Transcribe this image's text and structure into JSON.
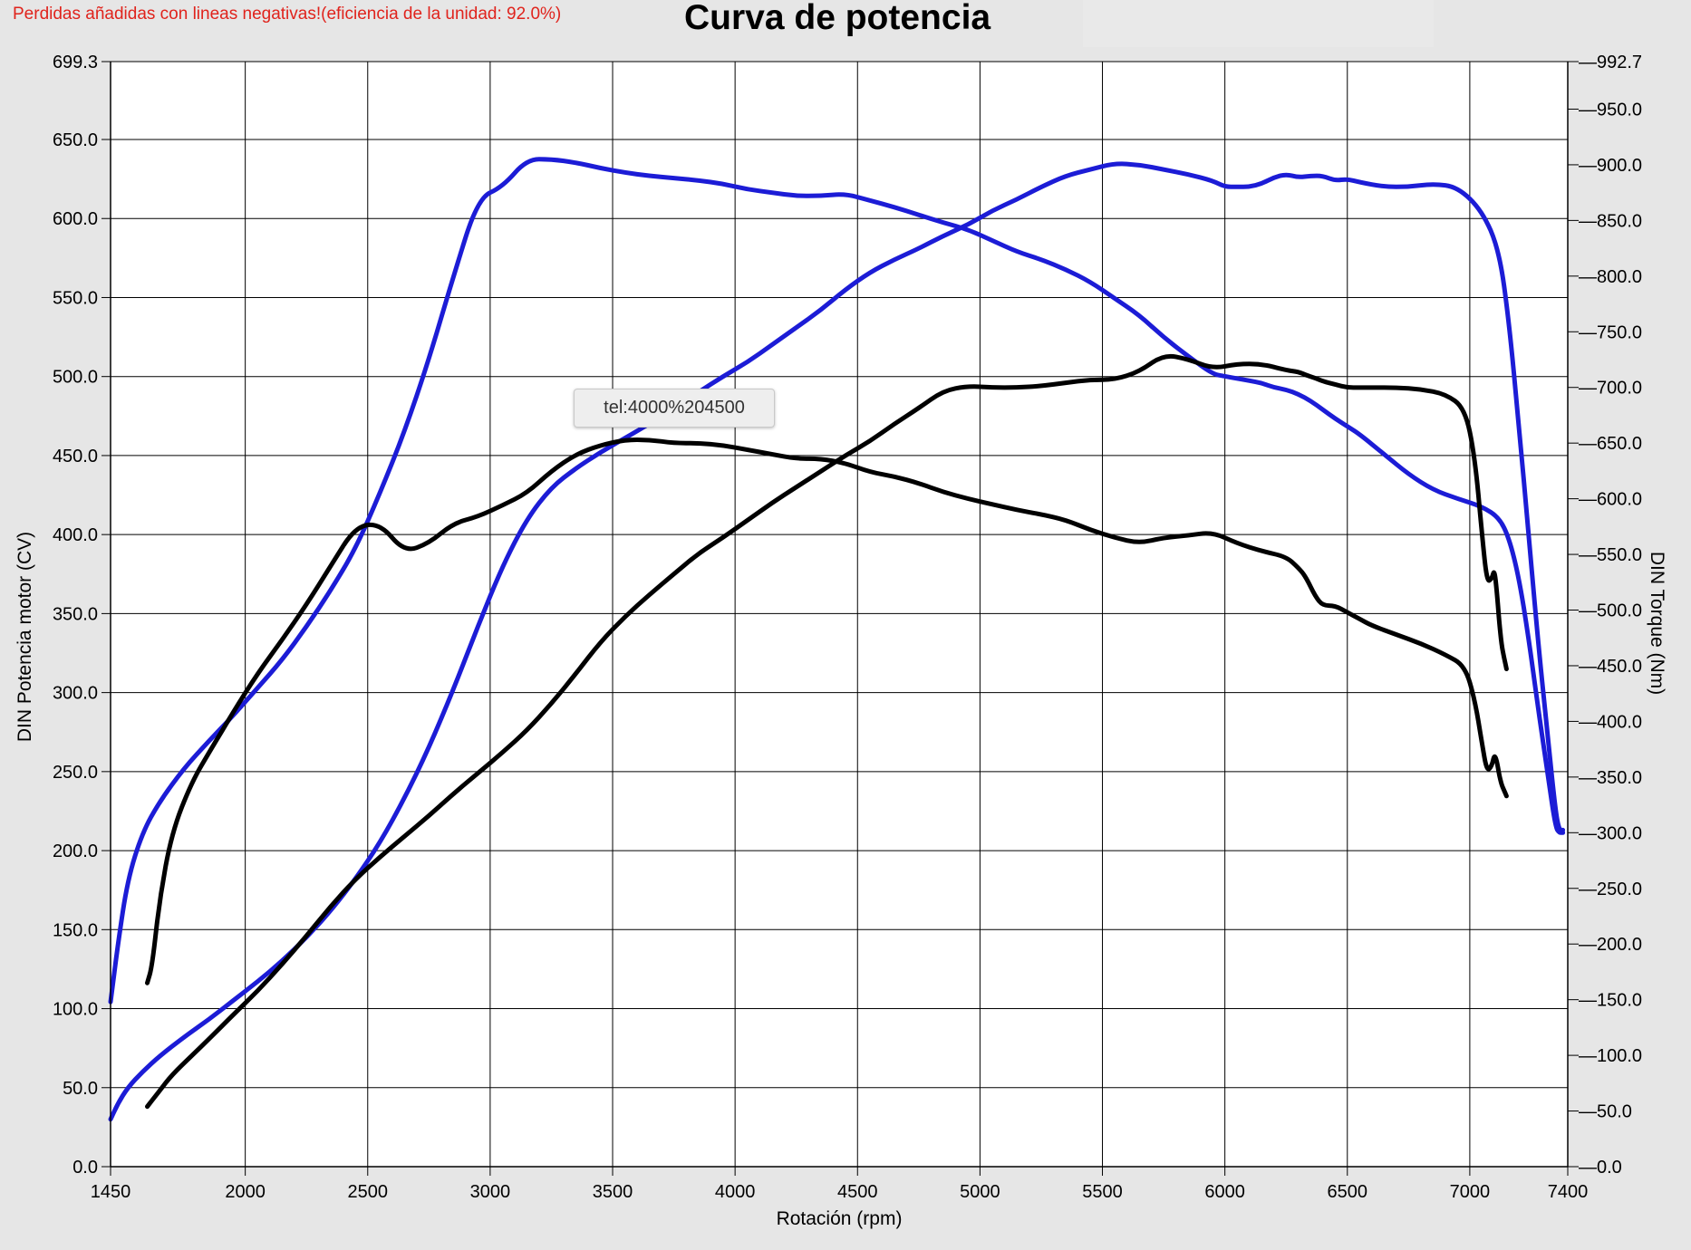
{
  "header": {
    "note": "Perdidas añadidas con lineas negativas!(eficiencia de la unidad: 92.0%)",
    "tooltip": "tel:4000%204500"
  },
  "colors": {
    "note": "#e0231c",
    "series_blue": "#1c1cd6",
    "series_black": "#000000",
    "grid": "#000000",
    "plot_bg": "#ffffff",
    "page_bg": "#e6e6e6"
  },
  "chart_data": {
    "type": "line",
    "title": "Curva de potencia",
    "xlabel": "Rotación (rpm)",
    "ylabel": "DIN Potencia motor (CV)",
    "y2label": "DIN Torque (Nm)",
    "xlim": [
      1450,
      7400
    ],
    "ylim": [
      0,
      699.3
    ],
    "y2lim": [
      0,
      992.7
    ],
    "xticks": [
      "1450",
      "2000",
      "2500",
      "3000",
      "3500",
      "4000",
      "4500",
      "5000",
      "5500",
      "6000",
      "6500",
      "7000",
      "7400"
    ],
    "xtick_values": [
      1450,
      2000,
      2500,
      3000,
      3500,
      4000,
      4500,
      5000,
      5500,
      6000,
      6500,
      7000,
      7400
    ],
    "yticks": [
      "0.0",
      "50.0",
      "100.0",
      "150.0",
      "200.0",
      "250.0",
      "300.0",
      "350.0",
      "400.0",
      "450.0",
      "500.0",
      "550.0",
      "600.0",
      "650.0",
      "699.3"
    ],
    "ytick_values": [
      0,
      50,
      100,
      150,
      200,
      250,
      300,
      350,
      400,
      450,
      500,
      550,
      600,
      650,
      699.3
    ],
    "y2ticks": [
      "0.0",
      "50.0",
      "100.0",
      "150.0",
      "200.0",
      "250.0",
      "300.0",
      "350.0",
      "400.0",
      "450.0",
      "500.0",
      "550.0",
      "600.0",
      "650.0",
      "700.0",
      "750.0",
      "800.0",
      "850.0",
      "900.0",
      "950.0",
      "992.7"
    ],
    "y2tick_values": [
      0,
      50,
      100,
      150,
      200,
      250,
      300,
      350,
      400,
      450,
      500,
      550,
      600,
      650,
      700,
      750,
      800,
      850,
      900,
      950,
      992.7
    ],
    "grid": true,
    "series": [
      {
        "axis": "y",
        "color": "#1c1cd6",
        "x": [
          1450,
          1480,
          1520,
          1580,
          1650,
          1750,
          1850,
          1950,
          2050,
          2150,
          2250,
          2350,
          2450,
          2550,
          2650,
          2750,
          2850,
          2950,
          3050,
          3150,
          3250,
          3350,
          3450,
          3550,
          3650,
          3750,
          3850,
          3950,
          4050,
          4150,
          4250,
          4350,
          4450,
          4550,
          4650,
          4750,
          4850,
          4950,
          5050,
          5150,
          5250,
          5350,
          5450,
          5550,
          5650,
          5750,
          5850,
          5950,
          6000,
          6050,
          6100,
          6150,
          6200,
          6250,
          6300,
          6350,
          6400,
          6450,
          6500,
          6550,
          6650,
          6750,
          6850,
          6950,
          7050,
          7120,
          7160,
          7200,
          7240,
          7280,
          7320,
          7350,
          7365,
          7380
        ],
        "y": [
          30,
          40,
          50,
          60,
          70,
          82,
          93,
          105,
          117,
          130,
          145,
          162,
          182,
          205,
          233,
          265,
          302,
          342,
          380,
          410,
          430,
          442,
          452,
          461,
          470,
          480,
          490,
          500,
          509,
          520,
          531,
          542,
          555,
          566,
          574,
          581,
          589,
          596,
          605,
          612,
          620,
          627,
          631,
          635,
          634,
          631,
          628,
          624,
          620,
          620,
          620,
          622,
          626,
          628,
          626,
          627,
          627,
          624,
          625,
          623,
          620,
          620,
          622,
          620,
          605,
          580,
          535,
          470,
          400,
          330,
          270,
          225,
          213,
          213
        ]
      },
      {
        "axis": "y2",
        "color": "#1c1cd6",
        "x": [
          1450,
          1480,
          1520,
          1580,
          1650,
          1750,
          1850,
          1950,
          2050,
          2150,
          2250,
          2350,
          2450,
          2550,
          2650,
          2750,
          2850,
          2950,
          3050,
          3150,
          3250,
          3350,
          3450,
          3550,
          3650,
          3750,
          3850,
          3950,
          4050,
          4150,
          4250,
          4350,
          4450,
          4550,
          4650,
          4750,
          4850,
          4950,
          5050,
          5150,
          5250,
          5350,
          5450,
          5550,
          5650,
          5750,
          5850,
          5950,
          6000,
          6050,
          6100,
          6150,
          6200,
          6250,
          6300,
          6350,
          6400,
          6450,
          6500,
          6550,
          6650,
          6750,
          6850,
          6950,
          7050,
          7120,
          7160,
          7200,
          7240,
          7280,
          7320,
          7350,
          7365,
          7380
        ],
        "y": [
          148,
          200,
          258,
          300,
          328,
          358,
          382,
          405,
          430,
          455,
          485,
          518,
          555,
          605,
          660,
          725,
          800,
          870,
          880,
          905,
          905,
          902,
          897,
          893,
          890,
          888,
          886,
          883,
          878,
          875,
          872,
          872,
          874,
          868,
          862,
          855,
          848,
          842,
          832,
          822,
          815,
          806,
          795,
          780,
          765,
          745,
          728,
          712,
          710,
          708,
          706,
          704,
          700,
          698,
          694,
          688,
          680,
          672,
          665,
          658,
          640,
          622,
          608,
          600,
          593,
          583,
          565,
          530,
          475,
          410,
          350,
          305,
          300,
          300
        ]
      },
      {
        "axis": "y",
        "color": "#000000",
        "x": [
          1600,
          1620,
          1650,
          1700,
          1780,
          1860,
          1950,
          2050,
          2150,
          2250,
          2350,
          2450,
          2550,
          2650,
          2750,
          2850,
          2950,
          3050,
          3150,
          3250,
          3350,
          3450,
          3550,
          3650,
          3750,
          3850,
          3950,
          4050,
          4150,
          4250,
          4350,
          4450,
          4550,
          4650,
          4750,
          4850,
          4950,
          5050,
          5150,
          5250,
          5350,
          5450,
          5550,
          5650,
          5750,
          5850,
          5950,
          6050,
          6150,
          6250,
          6300,
          6330,
          6370,
          6400,
          6450,
          6500,
          6550,
          6600,
          6700,
          6800,
          6900,
          6980,
          7020,
          7050,
          7070,
          7090,
          7100,
          7110,
          7120,
          7130,
          7140,
          7150
        ],
        "y": [
          38,
          42,
          48,
          58,
          70,
          82,
          96,
          111,
          128,
          146,
          165,
          182,
          196,
          209,
          222,
          236,
          249,
          262,
          276,
          293,
          312,
          332,
          348,
          362,
          375,
          388,
          398,
          409,
          420,
          430,
          440,
          450,
          459,
          470,
          480,
          491,
          494,
          493,
          493,
          494,
          496,
          498,
          498,
          503,
          514,
          511,
          505,
          508,
          508,
          504,
          503,
          501,
          499,
          497,
          495,
          493,
          493,
          493,
          493,
          492,
          489,
          480,
          450,
          400,
          370,
          372,
          378,
          365,
          345,
          330,
          322,
          315
        ]
      },
      {
        "axis": "y2",
        "color": "#000000",
        "x": [
          1600,
          1620,
          1650,
          1700,
          1780,
          1860,
          1950,
          2050,
          2150,
          2250,
          2350,
          2450,
          2550,
          2650,
          2750,
          2850,
          2950,
          3050,
          3150,
          3250,
          3350,
          3450,
          3550,
          3650,
          3750,
          3850,
          3950,
          4050,
          4150,
          4250,
          4350,
          4450,
          4550,
          4650,
          4750,
          4850,
          4950,
          5050,
          5150,
          5250,
          5350,
          5450,
          5550,
          5650,
          5750,
          5850,
          5950,
          6050,
          6150,
          6250,
          6300,
          6330,
          6370,
          6400,
          6450,
          6500,
          6550,
          6600,
          6700,
          6800,
          6900,
          6980,
          7020,
          7050,
          7070,
          7090,
          7100,
          7110,
          7120,
          7130,
          7140,
          7150
        ],
        "y": [
          165,
          180,
          240,
          300,
          345,
          375,
          408,
          443,
          473,
          505,
          540,
          575,
          578,
          552,
          560,
          578,
          584,
          594,
          605,
          625,
          640,
          648,
          653,
          653,
          650,
          650,
          648,
          644,
          640,
          636,
          636,
          632,
          624,
          620,
          614,
          606,
          600,
          595,
          590,
          586,
          581,
          572,
          565,
          560,
          565,
          567,
          570,
          560,
          553,
          548,
          538,
          530,
          512,
          504,
          504,
          498,
          492,
          486,
          478,
          470,
          460,
          450,
          420,
          380,
          355,
          360,
          370,
          365,
          352,
          343,
          338,
          333
        ]
      }
    ]
  }
}
